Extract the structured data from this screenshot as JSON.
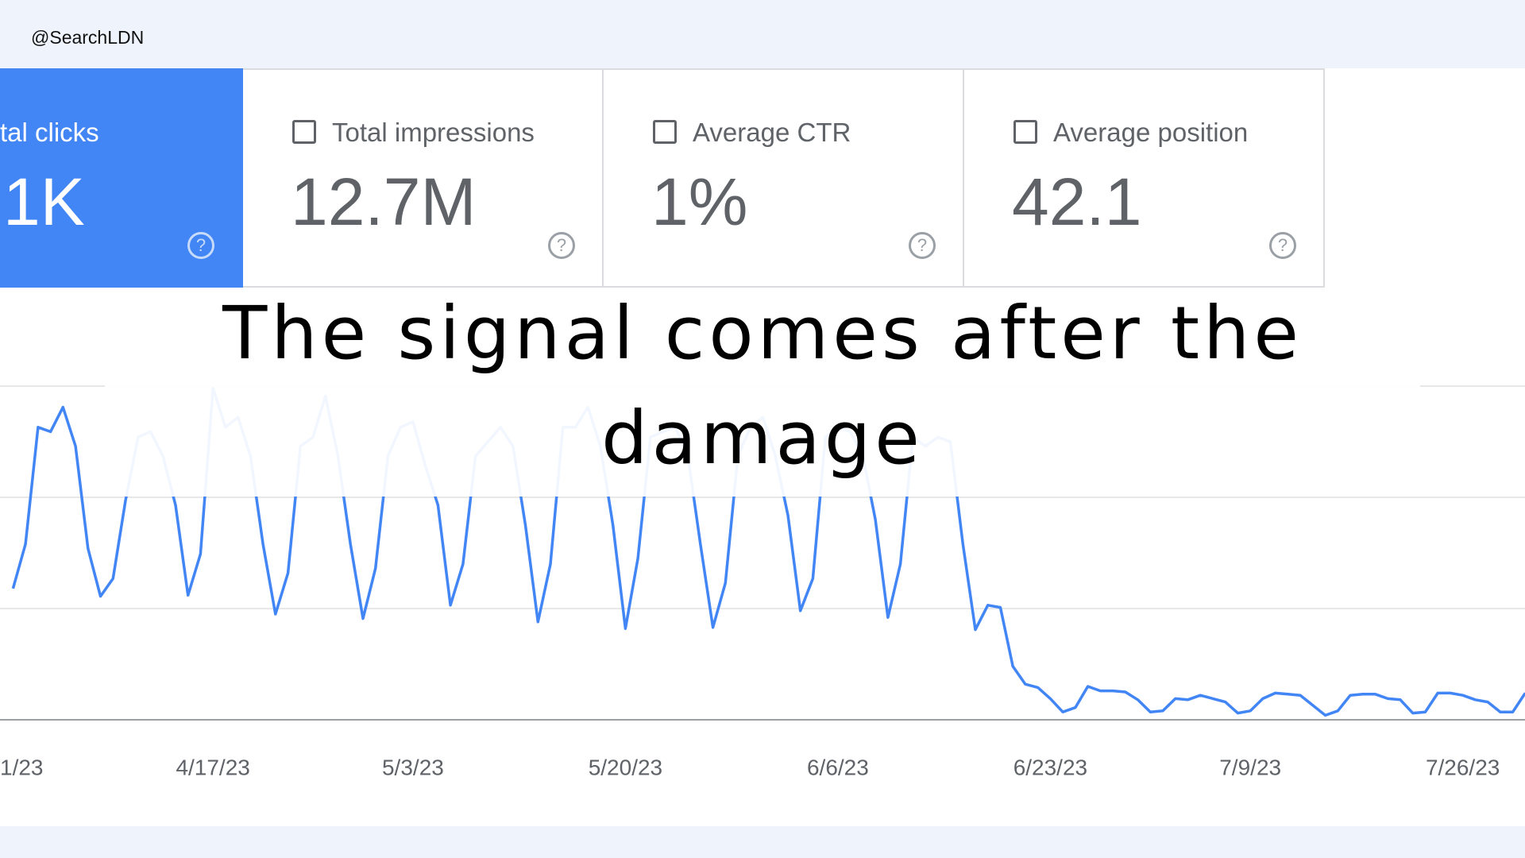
{
  "header": {
    "handle": "@SearchLDN"
  },
  "metrics": [
    {
      "label": "tal clicks",
      "value": "1K",
      "selected": true
    },
    {
      "label": "Total impressions",
      "value": "12.7M",
      "selected": false
    },
    {
      "label": "Average CTR",
      "value": "1%",
      "selected": false
    },
    {
      "label": "Average position",
      "value": "42.1",
      "selected": false
    }
  ],
  "title": "The signal comes after the damage",
  "chart_data": {
    "type": "line",
    "color": "#4285f4",
    "ylim": [
      0,
      3
    ],
    "gridlines": [
      0,
      1,
      2,
      3
    ],
    "categories": [
      "1/23",
      null,
      null,
      null,
      null,
      null,
      null,
      null,
      null,
      null,
      null,
      null,
      null,
      null,
      null,
      null,
      "4/17/23",
      null,
      null,
      null,
      null,
      null,
      null,
      null,
      null,
      null,
      null,
      null,
      null,
      null,
      null,
      null,
      "5/3/23",
      null,
      null,
      null,
      null,
      null,
      null,
      null,
      null,
      null,
      null,
      null,
      null,
      null,
      null,
      null,
      null,
      "5/20/23",
      null,
      null,
      null,
      null,
      null,
      null,
      null,
      null,
      null,
      null,
      null,
      null,
      null,
      null,
      null,
      null,
      "6/6/23",
      null,
      null,
      null,
      null,
      null,
      null,
      null,
      null,
      null,
      null,
      null,
      null,
      null,
      null,
      null,
      null,
      "6/23/23",
      null,
      null,
      null,
      null,
      null,
      null,
      null,
      null,
      null,
      null,
      null,
      null,
      null,
      null,
      null,
      "7/9/23",
      null,
      null,
      null,
      null,
      null,
      null,
      null,
      null,
      null,
      null,
      null,
      null,
      null,
      null,
      null,
      null,
      "7/26/23",
      null,
      null,
      null,
      null,
      null
    ],
    "values": [
      1.18,
      1.58,
      2.63,
      2.59,
      2.81,
      2.46,
      1.54,
      1.11,
      1.27,
      1.97,
      2.54,
      2.59,
      2.37,
      1.93,
      1.12,
      1.49,
      2.98,
      2.63,
      2.72,
      2.37,
      1.58,
      0.95,
      1.32,
      2.46,
      2.54,
      2.91,
      2.37,
      1.58,
      0.91,
      1.36,
      2.37,
      2.63,
      2.68,
      2.28,
      1.93,
      1.03,
      1.4,
      2.37,
      2.5,
      2.63,
      2.46,
      1.75,
      0.88,
      1.4,
      2.63,
      2.63,
      2.81,
      2.46,
      1.75,
      0.82,
      1.45,
      2.54,
      2.59,
      2.63,
      2.37,
      1.58,
      0.83,
      1.23,
      2.37,
      2.63,
      2.72,
      2.37,
      1.84,
      0.98,
      1.27,
      2.54,
      2.63,
      2.59,
      2.37,
      1.8,
      0.92,
      1.4,
      2.54,
      2.46,
      2.54,
      2.5,
      1.58,
      0.81,
      1.03,
      1.01,
      0.48,
      0.32,
      0.29,
      0.19,
      0.07,
      0.11,
      0.3,
      0.26,
      0.26,
      0.25,
      0.18,
      0.07,
      0.08,
      0.19,
      0.18,
      0.22,
      0.19,
      0.16,
      0.06,
      0.08,
      0.19,
      0.24,
      0.23,
      0.22,
      0.13,
      0.04,
      0.08,
      0.22,
      0.23,
      0.23,
      0.19,
      0.18,
      0.06,
      0.07,
      0.24,
      0.24,
      0.22,
      0.18,
      0.16,
      0.07,
      0.07,
      0.24
    ]
  }
}
